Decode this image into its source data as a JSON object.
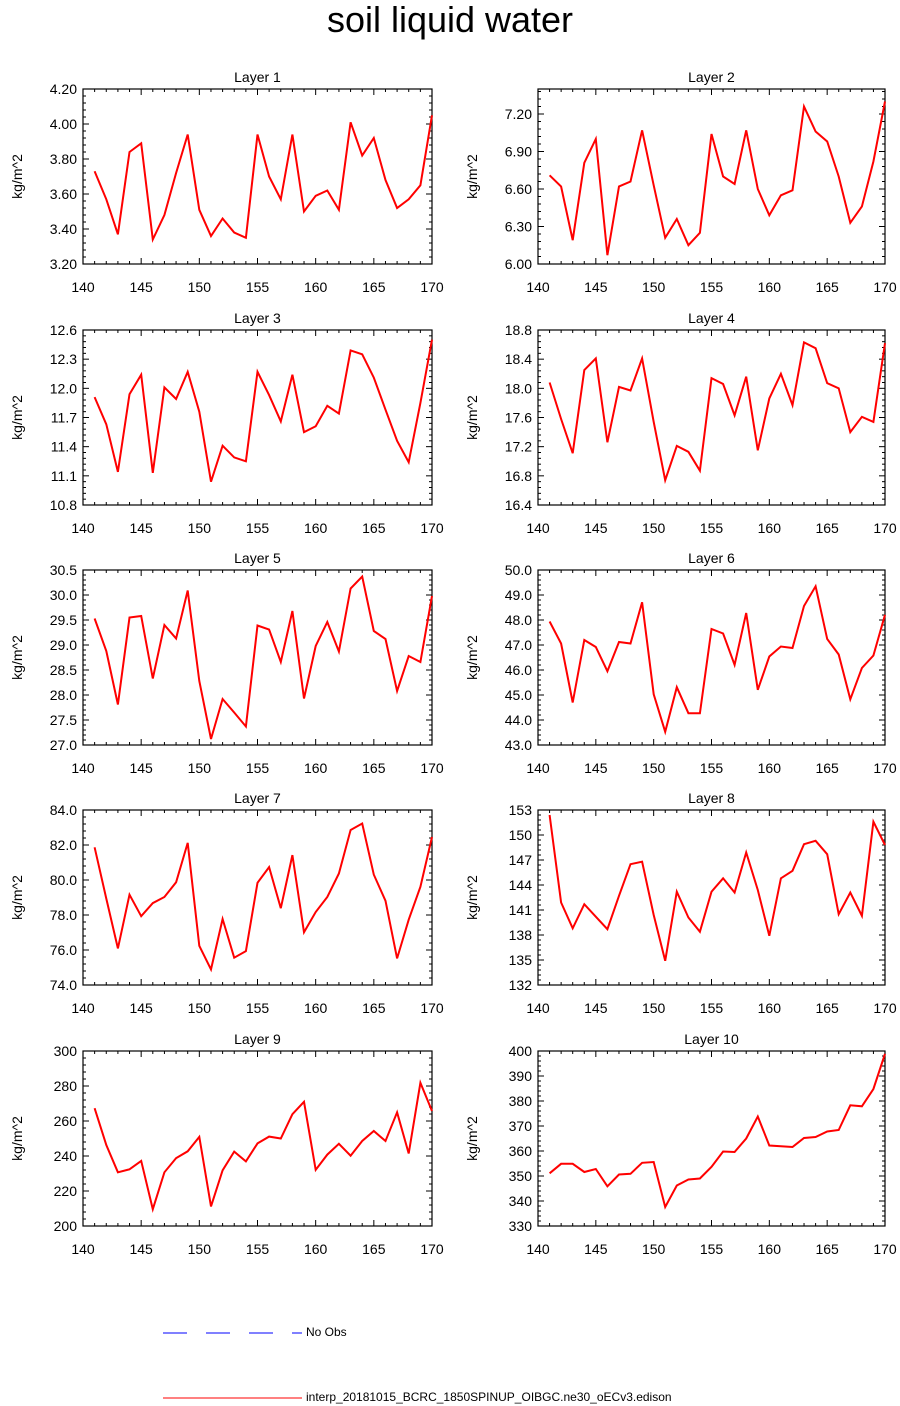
{
  "title": "soil liquid water",
  "colors": {
    "series": "#ff0000",
    "no_obs": "#0000ff",
    "axis": "#000000"
  },
  "legend": {
    "no_obs_label": "No Obs",
    "model_label": "interp_20181015_BCRC_1850SPINUP_OIBGC.ne30_oECv3.edison"
  },
  "chart_data": [
    {
      "type": "line",
      "title": "Layer 1",
      "ylabel": "kg/m^2",
      "xlabel": "",
      "xlim": [
        140,
        170
      ],
      "ylim": [
        3.2,
        4.2
      ],
      "xticks": [
        "140",
        "145",
        "150",
        "155",
        "160",
        "165",
        "170"
      ],
      "yticks": [
        "3.20",
        "3.40",
        "3.60",
        "3.80",
        "4.00",
        "4.20"
      ],
      "x": [
        141,
        142,
        143,
        144,
        145,
        146,
        147,
        148,
        149,
        150,
        151,
        152,
        153,
        154,
        155,
        156,
        157,
        158,
        159,
        160,
        161,
        162,
        163,
        164,
        165,
        166,
        167,
        168,
        169,
        170
      ],
      "values": [
        3.73,
        3.57,
        3.37,
        3.84,
        3.89,
        3.34,
        3.48,
        3.72,
        3.94,
        3.51,
        3.36,
        3.46,
        3.38,
        3.35,
        3.94,
        3.7,
        3.57,
        3.94,
        3.5,
        3.59,
        3.62,
        3.51,
        4.01,
        3.82,
        3.92,
        3.68,
        3.52,
        3.57,
        3.65,
        4.05
      ]
    },
    {
      "type": "line",
      "title": "Layer 2",
      "ylabel": "kg/m^2",
      "xlabel": "",
      "xlim": [
        140,
        170
      ],
      "ylim": [
        6.0,
        7.4
      ],
      "xticks": [
        "140",
        "145",
        "150",
        "155",
        "160",
        "165",
        "170"
      ],
      "yticks": [
        "6.00",
        "6.30",
        "6.60",
        "6.90",
        "7.20"
      ],
      "x": [
        141,
        142,
        143,
        144,
        145,
        146,
        147,
        148,
        149,
        150,
        151,
        152,
        153,
        154,
        155,
        156,
        157,
        158,
        159,
        160,
        161,
        162,
        163,
        164,
        165,
        166,
        167,
        168,
        169,
        170
      ],
      "values": [
        6.71,
        6.62,
        6.19,
        6.81,
        7.0,
        6.07,
        6.62,
        6.66,
        7.07,
        6.63,
        6.21,
        6.36,
        6.15,
        6.25,
        7.04,
        6.7,
        6.64,
        7.07,
        6.6,
        6.39,
        6.55,
        6.59,
        7.26,
        7.06,
        6.98,
        6.7,
        6.33,
        6.46,
        6.82,
        7.3
      ]
    },
    {
      "type": "line",
      "title": "Layer 3",
      "ylabel": "kg/m^2",
      "xlabel": "",
      "xlim": [
        140,
        170
      ],
      "ylim": [
        10.8,
        12.6
      ],
      "xticks": [
        "140",
        "145",
        "150",
        "155",
        "160",
        "165",
        "170"
      ],
      "yticks": [
        "10.8",
        "11.1",
        "11.4",
        "11.7",
        "12.0",
        "12.3",
        "12.6"
      ],
      "x": [
        141,
        142,
        143,
        144,
        145,
        146,
        147,
        148,
        149,
        150,
        151,
        152,
        153,
        154,
        155,
        156,
        157,
        158,
        159,
        160,
        161,
        162,
        163,
        164,
        165,
        166,
        167,
        168,
        169,
        170
      ],
      "values": [
        11.91,
        11.63,
        11.14,
        11.94,
        12.14,
        11.13,
        12.01,
        11.89,
        12.17,
        11.76,
        11.04,
        11.41,
        11.29,
        11.25,
        12.17,
        11.93,
        11.66,
        12.14,
        11.55,
        11.61,
        11.82,
        11.74,
        12.39,
        12.35,
        12.11,
        11.78,
        11.46,
        11.24,
        11.85,
        12.5
      ]
    },
    {
      "type": "line",
      "title": "Layer 4",
      "ylabel": "kg/m^2",
      "xlabel": "",
      "xlim": [
        140,
        170
      ],
      "ylim": [
        16.4,
        18.8
      ],
      "xticks": [
        "140",
        "145",
        "150",
        "155",
        "160",
        "165",
        "170"
      ],
      "yticks": [
        "16.4",
        "16.8",
        "17.2",
        "17.6",
        "18.0",
        "18.4",
        "18.8"
      ],
      "x": [
        141,
        142,
        143,
        144,
        145,
        146,
        147,
        148,
        149,
        150,
        151,
        152,
        153,
        154,
        155,
        156,
        157,
        158,
        159,
        160,
        161,
        162,
        163,
        164,
        165,
        166,
        167,
        168,
        169,
        170
      ],
      "values": [
        18.08,
        17.58,
        17.11,
        18.25,
        18.41,
        17.26,
        18.02,
        17.97,
        18.41,
        17.54,
        16.74,
        17.21,
        17.13,
        16.87,
        18.14,
        18.06,
        17.63,
        18.16,
        17.15,
        17.86,
        18.2,
        17.77,
        18.63,
        18.55,
        18.07,
        18.0,
        17.4,
        17.61,
        17.54,
        18.62
      ]
    },
    {
      "type": "line",
      "title": "Layer 5",
      "ylabel": "kg/m^2",
      "xlabel": "",
      "xlim": [
        140,
        170
      ],
      "ylim": [
        27.0,
        30.5
      ],
      "xticks": [
        "140",
        "145",
        "150",
        "155",
        "160",
        "165",
        "170"
      ],
      "yticks": [
        "27.0",
        "27.5",
        "28.0",
        "28.5",
        "29.0",
        "29.5",
        "30.0",
        "30.5"
      ],
      "x": [
        141,
        142,
        143,
        144,
        145,
        146,
        147,
        148,
        149,
        150,
        151,
        152,
        153,
        154,
        155,
        156,
        157,
        158,
        159,
        160,
        161,
        162,
        163,
        164,
        165,
        166,
        167,
        168,
        169,
        170
      ],
      "values": [
        29.53,
        28.88,
        27.81,
        29.55,
        29.58,
        28.33,
        29.4,
        29.13,
        30.09,
        28.28,
        27.12,
        27.92,
        27.65,
        27.37,
        29.39,
        29.31,
        28.66,
        29.68,
        27.93,
        28.98,
        29.46,
        28.87,
        30.13,
        30.37,
        29.28,
        29.12,
        28.08,
        28.78,
        28.66,
        29.98
      ]
    },
    {
      "type": "line",
      "title": "Layer 6",
      "ylabel": "kg/m^2",
      "xlabel": "",
      "xlim": [
        140,
        170
      ],
      "ylim": [
        43.0,
        50.0
      ],
      "xticks": [
        "140",
        "145",
        "150",
        "155",
        "160",
        "165",
        "170"
      ],
      "yticks": [
        "43.0",
        "44.0",
        "45.0",
        "46.0",
        "47.0",
        "48.0",
        "49.0",
        "50.0"
      ],
      "x": [
        141,
        142,
        143,
        144,
        145,
        146,
        147,
        148,
        149,
        150,
        151,
        152,
        153,
        154,
        155,
        156,
        157,
        158,
        159,
        160,
        161,
        162,
        163,
        164,
        165,
        166,
        167,
        168,
        169,
        170
      ],
      "values": [
        47.94,
        47.06,
        44.7,
        47.2,
        46.92,
        45.95,
        47.12,
        47.06,
        48.71,
        45.03,
        43.53,
        45.31,
        44.27,
        44.27,
        47.64,
        47.46,
        46.21,
        48.28,
        45.21,
        46.54,
        46.94,
        46.88,
        48.56,
        49.35,
        47.24,
        46.62,
        44.83,
        46.08,
        46.58,
        48.21
      ]
    },
    {
      "type": "line",
      "title": "Layer 7",
      "ylabel": "kg/m^2",
      "xlabel": "",
      "xlim": [
        140,
        170
      ],
      "ylim": [
        74.0,
        84.0
      ],
      "xticks": [
        "140",
        "145",
        "150",
        "155",
        "160",
        "165",
        "170"
      ],
      "yticks": [
        "74.0",
        "76.0",
        "78.0",
        "80.0",
        "82.0",
        "84.0"
      ],
      "x": [
        141,
        142,
        143,
        144,
        145,
        146,
        147,
        148,
        149,
        150,
        151,
        152,
        153,
        154,
        155,
        156,
        157,
        158,
        159,
        160,
        161,
        162,
        163,
        164,
        165,
        166,
        167,
        168,
        169,
        170
      ],
      "values": [
        81.87,
        78.94,
        76.09,
        79.16,
        77.93,
        78.68,
        79.03,
        79.87,
        82.12,
        76.24,
        74.89,
        77.77,
        75.56,
        75.94,
        79.84,
        80.74,
        78.39,
        81.42,
        77.01,
        78.17,
        79.03,
        80.37,
        82.86,
        83.23,
        80.31,
        78.81,
        75.52,
        77.73,
        79.61,
        82.46
      ]
    },
    {
      "type": "line",
      "title": "Layer 8",
      "ylabel": "kg/m^2",
      "xlabel": "",
      "xlim": [
        140,
        170
      ],
      "ylim": [
        132,
        153
      ],
      "xticks": [
        "140",
        "145",
        "150",
        "155",
        "160",
        "165",
        "170"
      ],
      "yticks": [
        "132",
        "135",
        "138",
        "141",
        "144",
        "147",
        "150",
        "153"
      ],
      "x": [
        141,
        142,
        143,
        144,
        145,
        146,
        147,
        148,
        149,
        150,
        151,
        152,
        153,
        154,
        155,
        156,
        157,
        158,
        159,
        160,
        161,
        162,
        163,
        164,
        165,
        166,
        167,
        168,
        169,
        170
      ],
      "values": [
        152.4,
        141.9,
        138.8,
        141.7,
        140.2,
        138.7,
        142.7,
        146.5,
        146.8,
        140.4,
        134.9,
        143.2,
        140.1,
        138.4,
        143.2,
        144.8,
        143.1,
        147.9,
        143.4,
        137.9,
        144.8,
        145.7,
        148.9,
        149.3,
        147.7,
        140.5,
        143.1,
        140.3,
        151.6,
        148.8
      ]
    },
    {
      "type": "line",
      "title": "Layer 9",
      "ylabel": "kg/m^2",
      "xlabel": "",
      "xlim": [
        140,
        170
      ],
      "ylim": [
        200,
        300
      ],
      "xticks": [
        "140",
        "145",
        "150",
        "155",
        "160",
        "165",
        "170"
      ],
      "yticks": [
        "200",
        "220",
        "240",
        "260",
        "280",
        "300"
      ],
      "x": [
        141,
        142,
        143,
        144,
        145,
        146,
        147,
        148,
        149,
        150,
        151,
        152,
        153,
        154,
        155,
        156,
        157,
        158,
        159,
        160,
        161,
        162,
        163,
        164,
        165,
        166,
        167,
        168,
        169,
        170
      ],
      "values": [
        267.3,
        246.3,
        230.7,
        232.4,
        237.2,
        209.6,
        230.7,
        238.8,
        242.7,
        250.9,
        211.2,
        231.8,
        242.5,
        236.9,
        247.2,
        251.1,
        250.0,
        263.9,
        271.0,
        232.1,
        240.8,
        247.0,
        240.2,
        248.6,
        254.3,
        248.6,
        265.0,
        241.4,
        281.8,
        265.7
      ]
    },
    {
      "type": "line",
      "title": "Layer 10",
      "ylabel": "kg/m^2",
      "xlabel": "",
      "xlim": [
        140,
        170
      ],
      "ylim": [
        330,
        400
      ],
      "xticks": [
        "140",
        "145",
        "150",
        "155",
        "160",
        "165",
        "170"
      ],
      "yticks": [
        "330",
        "340",
        "350",
        "360",
        "370",
        "380",
        "390",
        "400"
      ],
      "x": [
        141,
        142,
        143,
        144,
        145,
        146,
        147,
        148,
        149,
        150,
        151,
        152,
        153,
        154,
        155,
        156,
        157,
        158,
        159,
        160,
        161,
        162,
        163,
        164,
        165,
        166,
        167,
        168,
        169,
        170
      ],
      "values": [
        351.1,
        354.9,
        354.9,
        351.6,
        352.8,
        345.9,
        350.6,
        350.9,
        355.3,
        355.6,
        337.6,
        346.2,
        348.6,
        349.0,
        353.7,
        359.8,
        359.6,
        365.0,
        373.8,
        362.2,
        361.9,
        361.6,
        365.2,
        365.6,
        367.8,
        368.4,
        378.3,
        377.9,
        384.8,
        398.9
      ]
    }
  ]
}
